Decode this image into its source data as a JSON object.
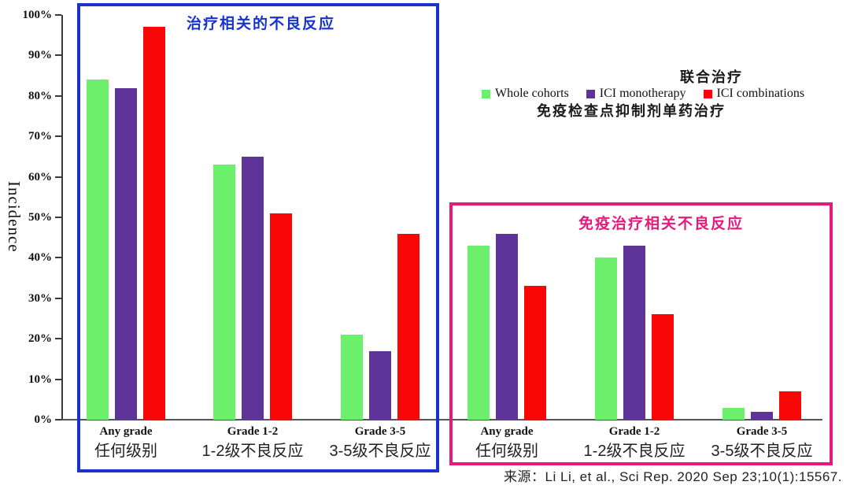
{
  "chart": {
    "y_axis_title": "Incidence",
    "source": "来源：Li Li, et al., Sci Rep. 2020 Sep 23;10(1):15567."
  },
  "annotations": {
    "combination_therapy": "联合治疗",
    "monotherapy": "免疫检查点抑制剂单药治疗"
  },
  "chart_data": {
    "type": "bar",
    "title": "",
    "xlabel": "",
    "ylabel": "Incidence",
    "ylim": [
      0,
      100
    ],
    "y_tick_step": 10,
    "y_tick_suffix": "%",
    "grid": false,
    "legend_position": "top-right",
    "series": [
      {
        "name": "Whole cohorts",
        "color": "#6cf06c"
      },
      {
        "name": "ICI monotherapy",
        "color": "#5f3499"
      },
      {
        "name": "ICI combinations",
        "color": "#f90606"
      }
    ],
    "panels": [
      {
        "id": "treatment_related",
        "title": "治疗相关的不良反应",
        "border_color": "#1733cc",
        "groups": [
          {
            "en": "Any grade",
            "zh": "任何级别",
            "values": [
              84,
              82,
              97
            ]
          },
          {
            "en": "Grade 1-2",
            "zh": "1-2级不良反应",
            "values": [
              63,
              65,
              51
            ]
          },
          {
            "en": "Grade 3-5",
            "zh": "3-5级不良反应",
            "values": [
              21,
              17,
              46
            ]
          }
        ]
      },
      {
        "id": "immune_related",
        "title": "免疫治疗相关不良反应",
        "border_color": "#e8197c",
        "groups": [
          {
            "en": "Any grade",
            "zh": "任何级别",
            "values": [
              43,
              46,
              33
            ]
          },
          {
            "en": "Grade 1-2",
            "zh": "1-2级不良反应",
            "values": [
              40,
              43,
              26
            ]
          },
          {
            "en": "Grade 3-5",
            "zh": "3-5级不良反应",
            "values": [
              3,
              2,
              7
            ]
          }
        ]
      }
    ]
  }
}
